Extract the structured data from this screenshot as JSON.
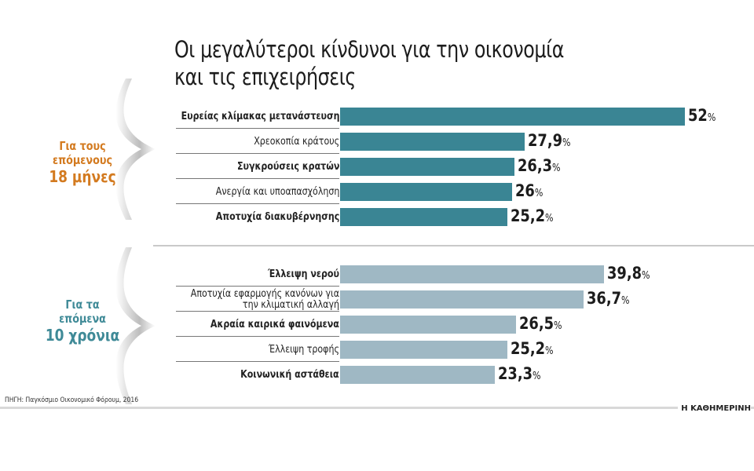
{
  "title_lines": [
    "Οι μεγαλύτεροι κίνδυνοι για την οικονομία",
    "και τις επιχειρήσεις"
  ],
  "colors": {
    "group1": "#3a8594",
    "group2": "#9fb8c4",
    "label1": "#d37a1f",
    "label2": "#3f8a97"
  },
  "chart_data": [
    {
      "type": "bar",
      "orientation": "horizontal",
      "group_label": [
        "Για τους",
        "επόμενους",
        "18 μήνες"
      ],
      "categories": [
        "Ευρείας κλίμακας μετανάστευση",
        "Χρεοκοπία κράτους",
        "Συγκρούσεις κρατών",
        "Ανεργία και υποαπασχόληση",
        "Αποτυχία διακυβέρνησης"
      ],
      "bold": [
        true,
        false,
        true,
        false,
        true
      ],
      "values": [
        52,
        27.9,
        26.3,
        26,
        25.2
      ],
      "value_labels": [
        "52",
        "27,9",
        "26,3",
        "26",
        "25,2"
      ],
      "unit": "%"
    },
    {
      "type": "bar",
      "orientation": "horizontal",
      "group_label": [
        "Για τα",
        "επόμενα",
        "10 χρόνια"
      ],
      "categories": [
        "Έλλειψη νερού",
        "Αποτυχία εφαρμογής κανόνων για την κλιματική αλλαγή",
        "Ακραία καιρικά φαινόμενα",
        "Έλλειψη τροφής",
        "Κοινωνική αστάθεια"
      ],
      "bold": [
        true,
        false,
        true,
        false,
        true
      ],
      "values": [
        39.8,
        36.7,
        26.5,
        25.2,
        23.3
      ],
      "value_labels": [
        "39,8",
        "36,7",
        "26,5",
        "25,2",
        "23,3"
      ],
      "unit": "%"
    }
  ],
  "source": "ΠΗΓΗ: Παγκόσμιο Οικονομικό Φόρουμ, 2016",
  "logo": "Η ΚΑΘΗΜΕΡΙΝΗ"
}
